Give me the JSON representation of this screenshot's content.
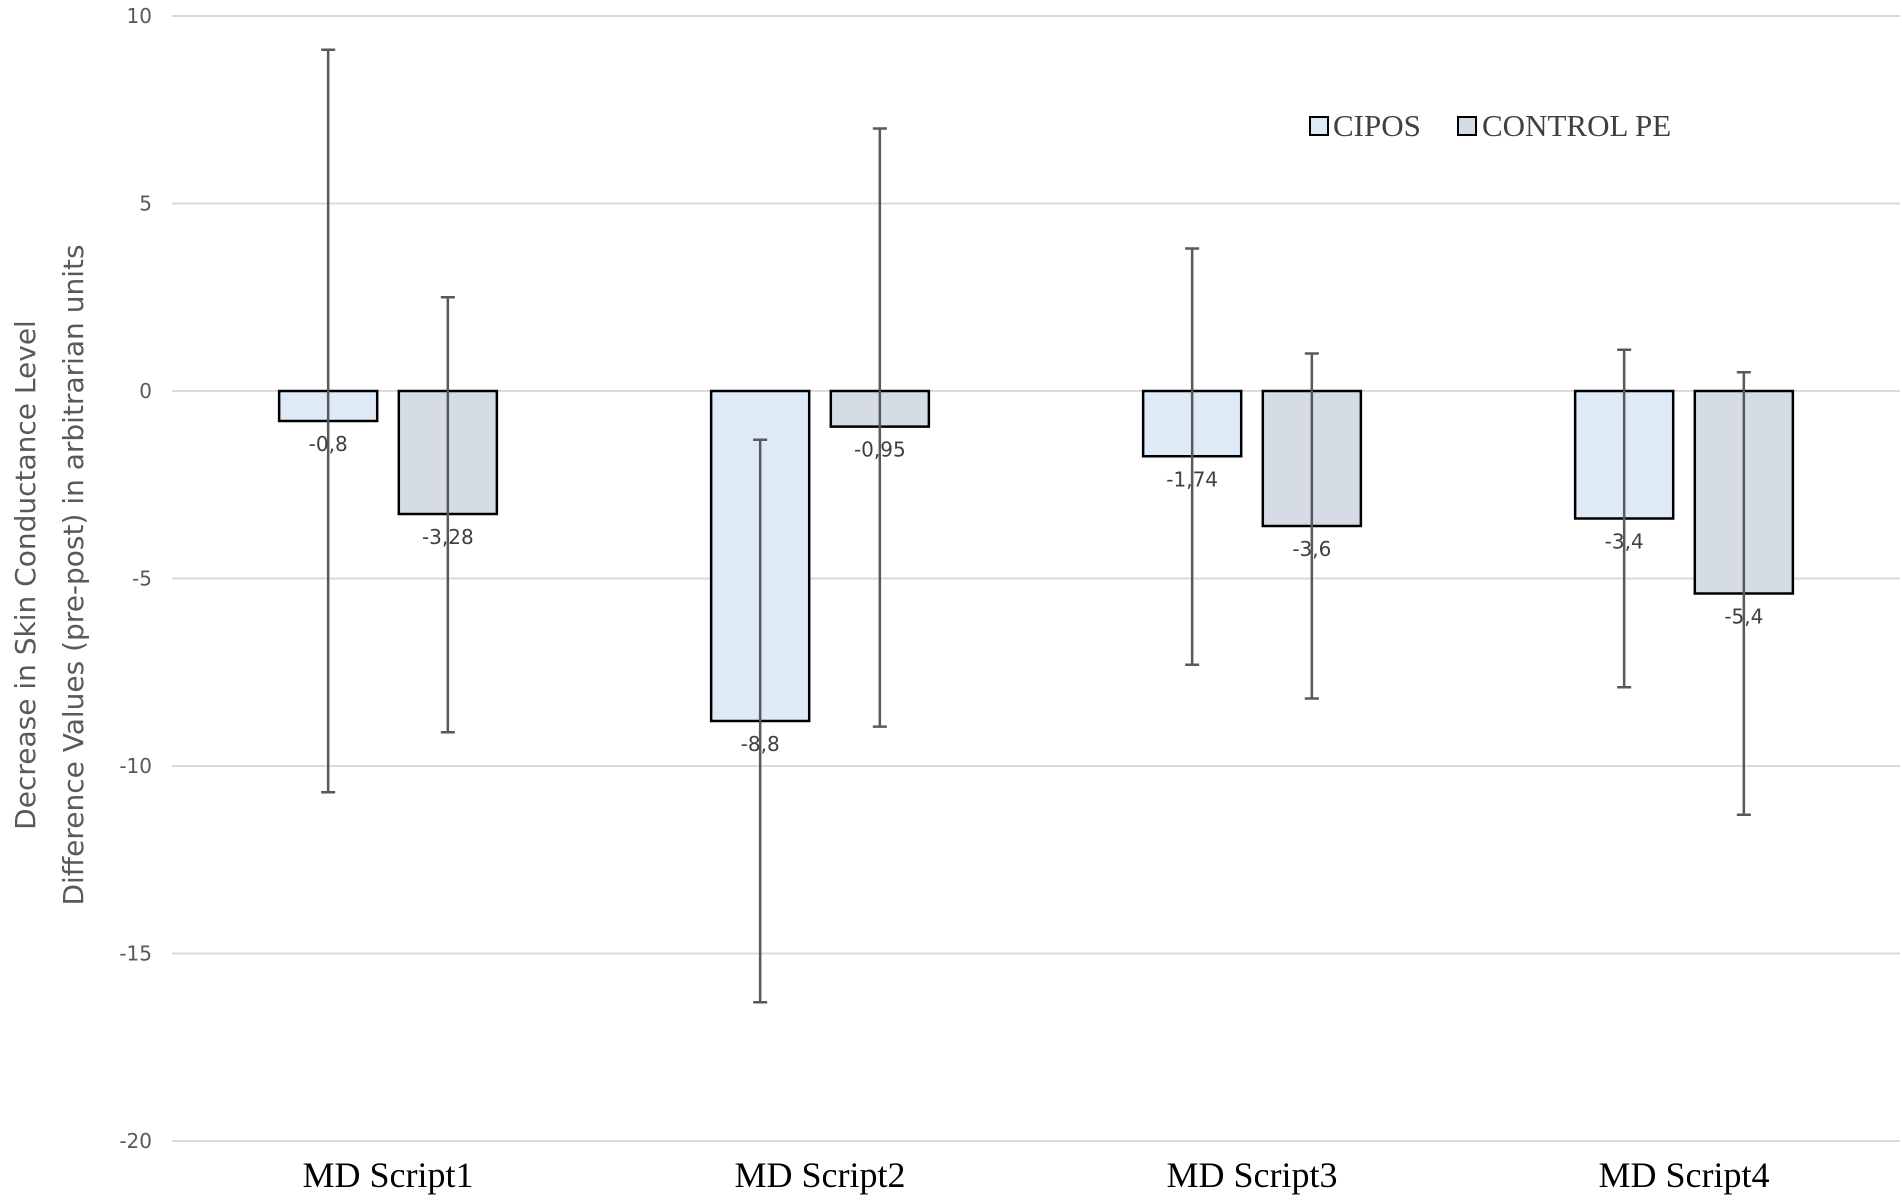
{
  "chart_data": {
    "type": "bar",
    "title": "",
    "xlabel": "",
    "ylabel": "Decrease in Skin Conductance Level Difference Values (pre-post) in arbitrarian units",
    "ylabel_lines": [
      "Decrease in Skin Conductance Level",
      "Difference Values (pre-post) in arbitrarian units"
    ],
    "ylim": [
      -20,
      10
    ],
    "yticks": [
      10,
      5,
      0,
      -5,
      -10,
      -15,
      -20
    ],
    "grid": true,
    "legend_position": "top-right",
    "categories": [
      "MD Script1",
      "MD Script2",
      "MD Script3",
      "MD Script4"
    ],
    "series": [
      {
        "name": "CIPOS",
        "color": "#deebf7",
        "values": [
          -0.8,
          -8.8,
          -1.74,
          -3.4
        ],
        "value_labels": [
          "-0,8",
          "-8,8",
          "-1,74",
          "-3,4"
        ],
        "error_low": [
          -10.7,
          -16.3,
          -7.3,
          -7.9
        ],
        "error_high": [
          9.1,
          -1.3,
          3.8,
          1.1
        ]
      },
      {
        "name": "CONTROL PE",
        "color": "#d6dce5",
        "values": [
          -3.28,
          -0.95,
          -3.6,
          -5.4
        ],
        "value_labels": [
          "-3,28",
          "-0,95",
          "-3,6",
          "-5,4"
        ],
        "error_low": [
          -9.1,
          -8.95,
          -8.2,
          -11.3
        ],
        "error_high": [
          2.5,
          7.0,
          1.0,
          0.5
        ]
      }
    ]
  }
}
